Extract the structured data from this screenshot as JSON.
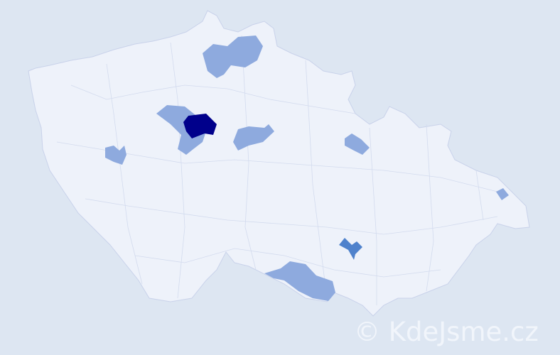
{
  "map": {
    "base_color": "#eef2fa",
    "border_color": "#c9d2ea",
    "levels": {
      "low": "#8eaade",
      "mid": "#4f82cc",
      "high": "#00008b"
    }
  },
  "watermark": "© KdeJsme.cz"
}
